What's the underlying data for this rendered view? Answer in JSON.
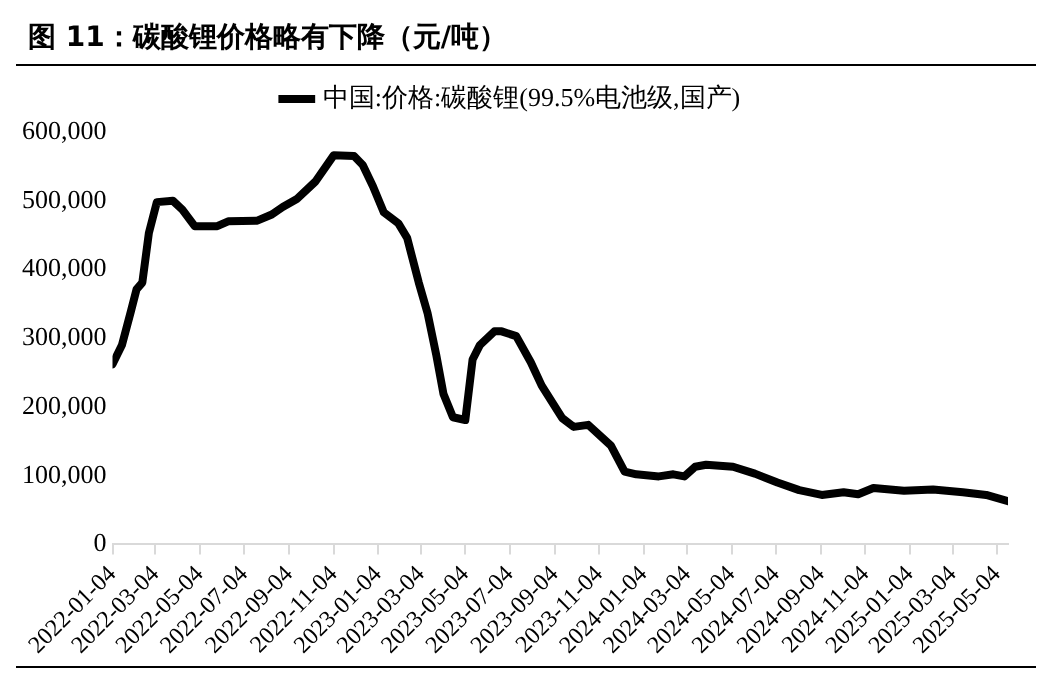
{
  "chart_data": {
    "type": "line",
    "title": "图 11：碳酸锂价格略有下降（元/吨）",
    "x": [
      "2022-01-04",
      "2022-01-17",
      "2022-01-29",
      "2022-02-06",
      "2022-02-14",
      "2022-02-23",
      "2022-03-06",
      "2022-03-28",
      "2022-04-10",
      "2022-04-27",
      "2022-05-28",
      "2022-06-12",
      "2022-07-22",
      "2022-08-11",
      "2022-08-26",
      "2022-09-15",
      "2022-10-10",
      "2022-11-04",
      "2022-12-02",
      "2022-12-14",
      "2022-12-28",
      "2023-01-12",
      "2023-02-01",
      "2023-02-13",
      "2023-03-01",
      "2023-03-13",
      "2023-03-25",
      "2023-04-04",
      "2023-04-17",
      "2023-05-04",
      "2023-05-14",
      "2023-05-24",
      "2023-06-13",
      "2023-06-23",
      "2023-07-13",
      "2023-08-02",
      "2023-08-17",
      "2023-09-14",
      "2023-09-30",
      "2023-10-20",
      "2023-11-20",
      "2023-12-09",
      "2023-12-25",
      "2024-01-25",
      "2024-02-14",
      "2024-02-29",
      "2024-03-15",
      "2024-03-30",
      "2024-05-06",
      "2024-06-05",
      "2024-07-06",
      "2024-08-05",
      "2024-09-05",
      "2024-10-05",
      "2024-10-25",
      "2024-11-15",
      "2024-12-27",
      "2025-02-05",
      "2025-03-18",
      "2025-04-19",
      "2025-05-19"
    ],
    "series": [
      {
        "name": "中国:价格:碳酸锂(99.5%电池级,国产)",
        "color": "#000000",
        "values": [
          262000,
          290000,
          338000,
          371000,
          381000,
          453000,
          498000,
          500000,
          487000,
          463000,
          463000,
          470000,
          471000,
          480000,
          491000,
          503000,
          528000,
          566000,
          565000,
          552000,
          521000,
          483000,
          467000,
          446000,
          381000,
          337000,
          276000,
          219000,
          185000,
          181000,
          269000,
          290000,
          310000,
          310000,
          303000,
          265000,
          231000,
          184000,
          171000,
          174000,
          144000,
          106000,
          102000,
          99000,
          102000,
          99000,
          113000,
          116000,
          113000,
          103000,
          90000,
          79000,
          72000,
          76000,
          73000,
          82000,
          78000,
          80000,
          76000,
          72000,
          63000
        ]
      }
    ],
    "xlim": [
      "2022-01-04",
      "2025-05-19"
    ],
    "xticks": [
      "2022-01-04",
      "2022-03-04",
      "2022-05-04",
      "2022-07-04",
      "2022-09-04",
      "2022-11-04",
      "2023-01-04",
      "2023-03-04",
      "2023-05-04",
      "2023-07-04",
      "2023-09-04",
      "2023-11-04",
      "2024-01-04",
      "2024-03-04",
      "2024-05-04",
      "2024-07-04",
      "2024-09-04",
      "2024-11-04",
      "2025-01-04",
      "2025-03-04",
      "2025-05-04"
    ],
    "ylim": [
      0,
      600000
    ],
    "yticks": [
      {
        "value": 0,
        "label": "0"
      },
      {
        "value": 100000,
        "label": "100,000"
      },
      {
        "value": 200000,
        "label": "200,000"
      },
      {
        "value": 300000,
        "label": "300,000"
      },
      {
        "value": 400000,
        "label": "400,000"
      },
      {
        "value": 500000,
        "label": "500,000"
      },
      {
        "value": 600000,
        "label": "600,000"
      }
    ],
    "grid": false,
    "legend": "top",
    "marker": "none",
    "line_style": "solid"
  }
}
